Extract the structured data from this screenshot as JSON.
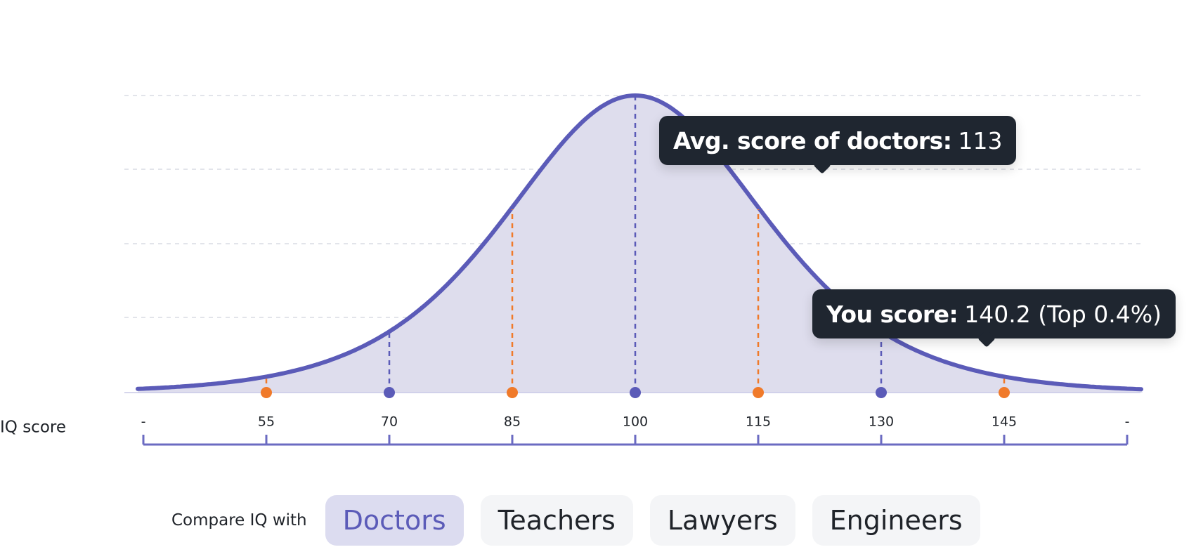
{
  "chart_data": {
    "type": "distribution",
    "x_label": "IQ score",
    "xlim": [
      40,
      160
    ],
    "xticks": [
      {
        "value": 40,
        "label": "-"
      },
      55,
      70,
      85,
      100,
      115,
      130,
      145,
      {
        "value": 160,
        "label": "-"
      }
    ],
    "mean": 100,
    "color": "#5b5bb8",
    "fill": "#dedded",
    "markers": {
      "x": [
        55,
        70,
        85,
        100,
        115,
        130,
        145
      ],
      "colors": [
        "#f07a2a",
        "#5b5bb8",
        "#f07a2a",
        "#5b5bb8",
        "#f07a2a",
        "#5b5bb8",
        "#f07a2a"
      ]
    },
    "annotations": [
      {
        "label": "Avg. score of doctors:",
        "text": "113"
      },
      {
        "label": "You score:",
        "text": "140.2 (Top 0.4%)"
      }
    ]
  },
  "compare": {
    "label": "Compare IQ with",
    "options": [
      "Doctors",
      "Teachers",
      "Lawyers",
      "Engineers"
    ],
    "selected": 0
  }
}
